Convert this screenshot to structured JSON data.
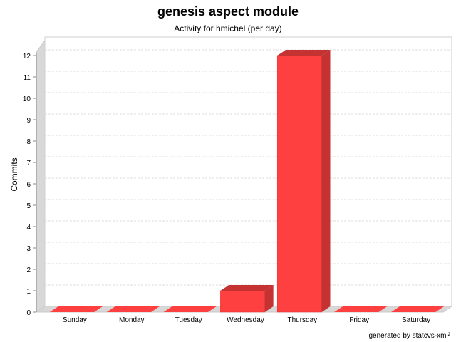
{
  "chart_data": {
    "type": "bar",
    "title": "genesis aspect module",
    "subtitle": "Activity for hmichel (per day)",
    "xlabel": "",
    "ylabel": "Commits",
    "categories": [
      "Sunday",
      "Monday",
      "Tuesday",
      "Wednesday",
      "Thursday",
      "Friday",
      "Saturday"
    ],
    "values": [
      0,
      0,
      0,
      1,
      12,
      0,
      0
    ],
    "ylim": [
      0,
      12
    ],
    "yticks": [
      0,
      1,
      2,
      3,
      4,
      5,
      6,
      7,
      8,
      9,
      10,
      11,
      12
    ],
    "grid": true,
    "legend": "none",
    "colors": {
      "bar": "#ff4040",
      "bar_side": "#c43232",
      "bar_top": "#c43232",
      "wall": "#d8d8d8",
      "grid": "#dddddd"
    }
  },
  "footer": "generated by statcvs-xml²"
}
